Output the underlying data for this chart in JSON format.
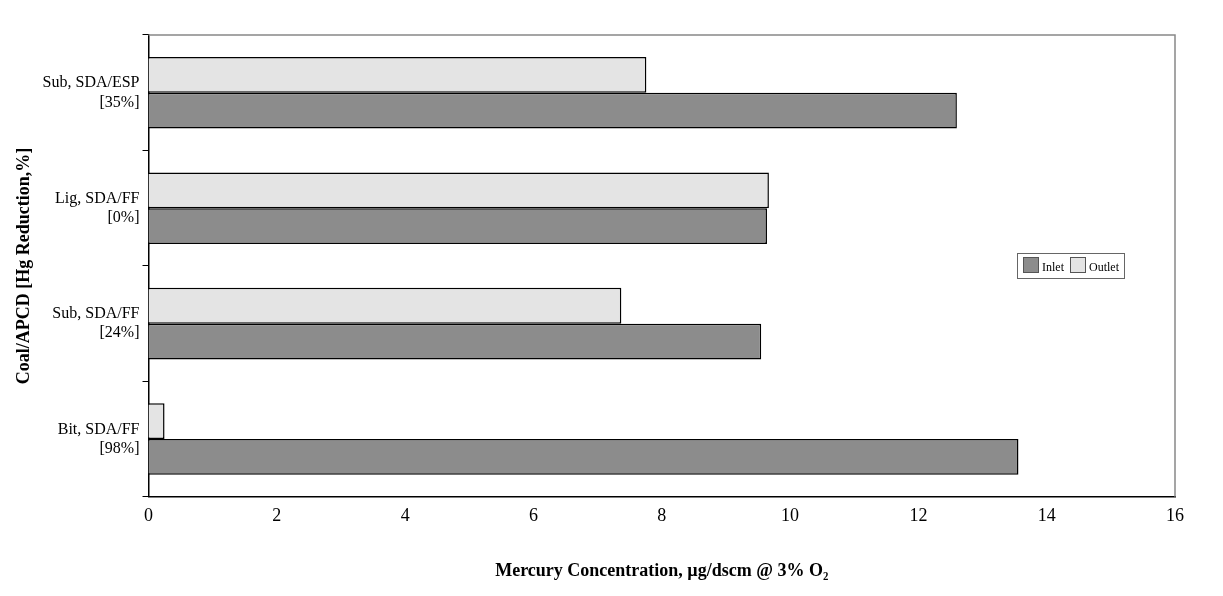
{
  "chart_data": {
    "type": "bar",
    "orientation": "horizontal",
    "xlabel": "Mercury Concentration, µg/dscm @ 3% O₂",
    "ylabel": "Coal/APCD [Hg Reduction,%]",
    "categories": [
      "Sub, SDA/ESP\n[35%]",
      "Lig, SDA/FF\n[0%]",
      "Sub, SDA/FF\n[24%]",
      "Bit, SDA/FF\n[98%]"
    ],
    "series": [
      {
        "name": "Inlet",
        "color": "#8c8c8c",
        "values": [
          12.6,
          9.64,
          9.55,
          13.56
        ]
      },
      {
        "name": "Outlet",
        "color": "#e4e4e4",
        "values": [
          7.76,
          9.67,
          7.37,
          0.25
        ]
      }
    ],
    "xlim": [
      0,
      16
    ],
    "xticks": [
      0,
      2,
      4,
      6,
      8,
      10,
      12,
      14,
      16
    ],
    "grid": false,
    "legend": "right"
  }
}
